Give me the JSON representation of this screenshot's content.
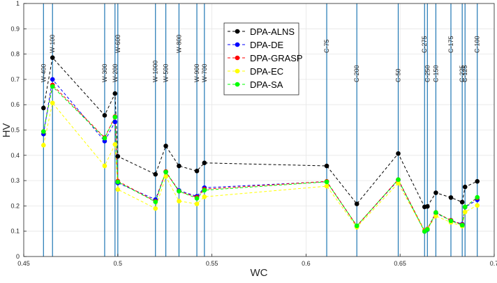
{
  "chart_data": {
    "type": "line",
    "title": "",
    "xlabel": "WC",
    "ylabel": "HV",
    "xlim": [
      0.45,
      0.7
    ],
    "ylim": [
      0,
      1
    ],
    "xticks": [
      "0.45",
      "0.5",
      "0.55",
      "0.6",
      "0.65",
      "0.7"
    ],
    "xtick_values": [
      0.45,
      0.5,
      0.55,
      0.6,
      0.65,
      0.7
    ],
    "yticks": [
      "0",
      "0.1",
      "0.2",
      "0.3",
      "0.4",
      "0.5",
      "0.6",
      "0.7",
      "0.8",
      "0.9",
      "1"
    ],
    "ytick_values": [
      0,
      0.1,
      0.2,
      0.3,
      0.4,
      0.5,
      0.6,
      0.7,
      0.8,
      0.9,
      1
    ],
    "grid": true,
    "legend_position": "top-center",
    "x": [
      0.4605,
      0.4653,
      0.493,
      0.4985,
      0.5,
      0.52,
      0.5255,
      0.5325,
      0.542,
      0.546,
      0.611,
      0.627,
      0.649,
      0.663,
      0.6645,
      0.669,
      0.677,
      0.683,
      0.6845,
      0.691
    ],
    "series": [
      {
        "name": "DPA-ALNS",
        "color": "#000000",
        "values": [
          0.587,
          0.786,
          0.558,
          0.644,
          0.396,
          0.325,
          0.437,
          0.358,
          0.338,
          0.37,
          0.358,
          0.208,
          0.407,
          0.196,
          0.198,
          0.252,
          0.233,
          0.215,
          0.275,
          0.297
        ]
      },
      {
        "name": "DPA-DE",
        "color": "#0000ff",
        "values": [
          0.484,
          0.7,
          0.456,
          0.532,
          0.291,
          0.225,
          0.334,
          0.261,
          0.238,
          0.272,
          0.296,
          0.121,
          0.302,
          0.099,
          0.106,
          0.171,
          0.143,
          0.128,
          0.195,
          0.224
        ]
      },
      {
        "name": "DPA-GRASP",
        "color": "#ff0000",
        "values": [
          0.494,
          0.678,
          0.47,
          0.553,
          0.298,
          0.218,
          0.336,
          0.258,
          0.234,
          0.266,
          0.297,
          0.121,
          0.304,
          0.102,
          0.109,
          0.174,
          0.143,
          0.126,
          0.196,
          0.232
        ]
      },
      {
        "name": "DPA-EC",
        "color": "#ffff00",
        "values": [
          0.44,
          0.607,
          0.358,
          0.443,
          0.265,
          0.19,
          0.316,
          0.219,
          0.208,
          0.236,
          0.278,
          0.116,
          0.29,
          0.1,
          0.108,
          0.16,
          0.135,
          0.12,
          0.176,
          0.202
        ]
      },
      {
        "name": "DPA-SA",
        "color": "#00ff00",
        "values": [
          0.494,
          0.672,
          0.468,
          0.551,
          0.295,
          0.216,
          0.334,
          0.258,
          0.23,
          0.262,
          0.295,
          0.121,
          0.304,
          0.099,
          0.107,
          0.174,
          0.141,
          0.124,
          0.196,
          0.234
        ]
      }
    ],
    "vertical_markers": [
      {
        "label": "W-400",
        "x": 0.4605
      },
      {
        "label": "W-100",
        "x": 0.4653
      },
      {
        "label": "W-300",
        "x": 0.493
      },
      {
        "label": "W-200",
        "x": 0.4985
      },
      {
        "label": "W-600",
        "x": 0.5
      },
      {
        "label": "W-1000",
        "x": 0.52
      },
      {
        "label": "W-500",
        "x": 0.5255
      },
      {
        "label": "W-800",
        "x": 0.5325
      },
      {
        "label": "W-900",
        "x": 0.542
      },
      {
        "label": "W-700",
        "x": 0.546
      },
      {
        "label": "C-75",
        "x": 0.611
      },
      {
        "label": "C-200",
        "x": 0.627
      },
      {
        "label": "C-50",
        "x": 0.649
      },
      {
        "label": "C-275",
        "x": 0.663
      },
      {
        "label": "C-250",
        "x": 0.6645
      },
      {
        "label": "C-150",
        "x": 0.669
      },
      {
        "label": "C-175",
        "x": 0.677
      },
      {
        "label": "C-225",
        "x": 0.683
      },
      {
        "label": "C-125",
        "x": 0.6845
      },
      {
        "label": "C-100",
        "x": 0.691
      }
    ]
  }
}
